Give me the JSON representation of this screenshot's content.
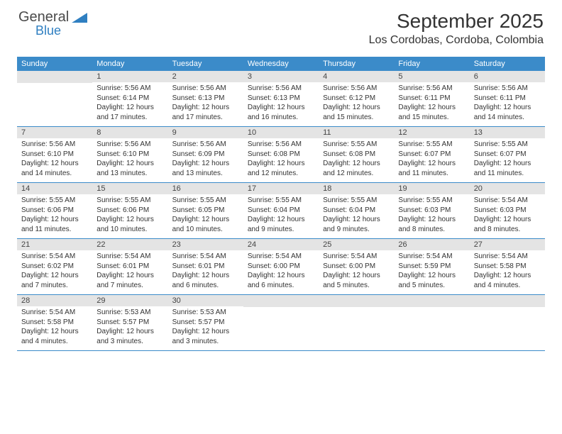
{
  "brand": {
    "word1": "General",
    "word2": "Blue"
  },
  "title": "September 2025",
  "location": "Los Cordobas, Cordoba, Colombia",
  "colors": {
    "header_bg": "#3b8bc9",
    "header_text": "#ffffff",
    "daynum_bg": "#e4e4e4",
    "row_border": "#3b8bc9",
    "brand_gray": "#4a4a4a",
    "brand_blue": "#2f7fc1",
    "body_text": "#333333",
    "page_bg": "#ffffff"
  },
  "typography": {
    "month_title_pt": 28,
    "location_pt": 16,
    "dow_pt": 11,
    "daynum_pt": 11,
    "body_pt": 10
  },
  "days_of_week": [
    "Sunday",
    "Monday",
    "Tuesday",
    "Wednesday",
    "Thursday",
    "Friday",
    "Saturday"
  ],
  "weeks": [
    [
      null,
      {
        "n": "1",
        "sr": "Sunrise: 5:56 AM",
        "ss": "Sunset: 6:14 PM",
        "dl": "Daylight: 12 hours and 17 minutes."
      },
      {
        "n": "2",
        "sr": "Sunrise: 5:56 AM",
        "ss": "Sunset: 6:13 PM",
        "dl": "Daylight: 12 hours and 17 minutes."
      },
      {
        "n": "3",
        "sr": "Sunrise: 5:56 AM",
        "ss": "Sunset: 6:13 PM",
        "dl": "Daylight: 12 hours and 16 minutes."
      },
      {
        "n": "4",
        "sr": "Sunrise: 5:56 AM",
        "ss": "Sunset: 6:12 PM",
        "dl": "Daylight: 12 hours and 15 minutes."
      },
      {
        "n": "5",
        "sr": "Sunrise: 5:56 AM",
        "ss": "Sunset: 6:11 PM",
        "dl": "Daylight: 12 hours and 15 minutes."
      },
      {
        "n": "6",
        "sr": "Sunrise: 5:56 AM",
        "ss": "Sunset: 6:11 PM",
        "dl": "Daylight: 12 hours and 14 minutes."
      }
    ],
    [
      {
        "n": "7",
        "sr": "Sunrise: 5:56 AM",
        "ss": "Sunset: 6:10 PM",
        "dl": "Daylight: 12 hours and 14 minutes."
      },
      {
        "n": "8",
        "sr": "Sunrise: 5:56 AM",
        "ss": "Sunset: 6:10 PM",
        "dl": "Daylight: 12 hours and 13 minutes."
      },
      {
        "n": "9",
        "sr": "Sunrise: 5:56 AM",
        "ss": "Sunset: 6:09 PM",
        "dl": "Daylight: 12 hours and 13 minutes."
      },
      {
        "n": "10",
        "sr": "Sunrise: 5:56 AM",
        "ss": "Sunset: 6:08 PM",
        "dl": "Daylight: 12 hours and 12 minutes."
      },
      {
        "n": "11",
        "sr": "Sunrise: 5:55 AM",
        "ss": "Sunset: 6:08 PM",
        "dl": "Daylight: 12 hours and 12 minutes."
      },
      {
        "n": "12",
        "sr": "Sunrise: 5:55 AM",
        "ss": "Sunset: 6:07 PM",
        "dl": "Daylight: 12 hours and 11 minutes."
      },
      {
        "n": "13",
        "sr": "Sunrise: 5:55 AM",
        "ss": "Sunset: 6:07 PM",
        "dl": "Daylight: 12 hours and 11 minutes."
      }
    ],
    [
      {
        "n": "14",
        "sr": "Sunrise: 5:55 AM",
        "ss": "Sunset: 6:06 PM",
        "dl": "Daylight: 12 hours and 11 minutes."
      },
      {
        "n": "15",
        "sr": "Sunrise: 5:55 AM",
        "ss": "Sunset: 6:06 PM",
        "dl": "Daylight: 12 hours and 10 minutes."
      },
      {
        "n": "16",
        "sr": "Sunrise: 5:55 AM",
        "ss": "Sunset: 6:05 PM",
        "dl": "Daylight: 12 hours and 10 minutes."
      },
      {
        "n": "17",
        "sr": "Sunrise: 5:55 AM",
        "ss": "Sunset: 6:04 PM",
        "dl": "Daylight: 12 hours and 9 minutes."
      },
      {
        "n": "18",
        "sr": "Sunrise: 5:55 AM",
        "ss": "Sunset: 6:04 PM",
        "dl": "Daylight: 12 hours and 9 minutes."
      },
      {
        "n": "19",
        "sr": "Sunrise: 5:55 AM",
        "ss": "Sunset: 6:03 PM",
        "dl": "Daylight: 12 hours and 8 minutes."
      },
      {
        "n": "20",
        "sr": "Sunrise: 5:54 AM",
        "ss": "Sunset: 6:03 PM",
        "dl": "Daylight: 12 hours and 8 minutes."
      }
    ],
    [
      {
        "n": "21",
        "sr": "Sunrise: 5:54 AM",
        "ss": "Sunset: 6:02 PM",
        "dl": "Daylight: 12 hours and 7 minutes."
      },
      {
        "n": "22",
        "sr": "Sunrise: 5:54 AM",
        "ss": "Sunset: 6:01 PM",
        "dl": "Daylight: 12 hours and 7 minutes."
      },
      {
        "n": "23",
        "sr": "Sunrise: 5:54 AM",
        "ss": "Sunset: 6:01 PM",
        "dl": "Daylight: 12 hours and 6 minutes."
      },
      {
        "n": "24",
        "sr": "Sunrise: 5:54 AM",
        "ss": "Sunset: 6:00 PM",
        "dl": "Daylight: 12 hours and 6 minutes."
      },
      {
        "n": "25",
        "sr": "Sunrise: 5:54 AM",
        "ss": "Sunset: 6:00 PM",
        "dl": "Daylight: 12 hours and 5 minutes."
      },
      {
        "n": "26",
        "sr": "Sunrise: 5:54 AM",
        "ss": "Sunset: 5:59 PM",
        "dl": "Daylight: 12 hours and 5 minutes."
      },
      {
        "n": "27",
        "sr": "Sunrise: 5:54 AM",
        "ss": "Sunset: 5:58 PM",
        "dl": "Daylight: 12 hours and 4 minutes."
      }
    ],
    [
      {
        "n": "28",
        "sr": "Sunrise: 5:54 AM",
        "ss": "Sunset: 5:58 PM",
        "dl": "Daylight: 12 hours and 4 minutes."
      },
      {
        "n": "29",
        "sr": "Sunrise: 5:53 AM",
        "ss": "Sunset: 5:57 PM",
        "dl": "Daylight: 12 hours and 3 minutes."
      },
      {
        "n": "30",
        "sr": "Sunrise: 5:53 AM",
        "ss": "Sunset: 5:57 PM",
        "dl": "Daylight: 12 hours and 3 minutes."
      },
      null,
      null,
      null,
      null
    ]
  ]
}
